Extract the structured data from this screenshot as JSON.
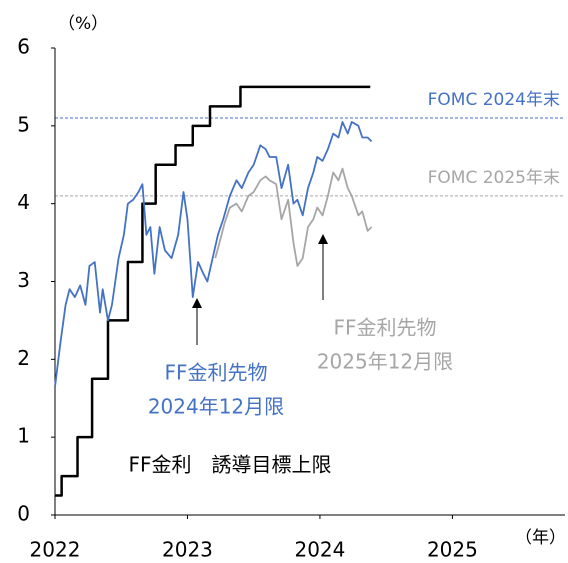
{
  "chart_data": {
    "type": "line",
    "unit_y": "（%）",
    "unit_x": "（年）",
    "xlim": [
      2022,
      2025.85
    ],
    "xticks": [
      2022,
      2023,
      2024,
      2025
    ],
    "ylim": [
      0,
      6
    ],
    "yticks": [
      0,
      1,
      2,
      3,
      4,
      5,
      6
    ],
    "grid": false,
    "hlines": [
      {
        "value": 5.1,
        "label": "FOMC 2024年末",
        "color": "#4472c4"
      },
      {
        "value": 4.1,
        "label": "FOMC  2025年末",
        "color": "#a6a6a6"
      }
    ],
    "series": [
      {
        "name": [
          "FF金利　誘導目標上限"
        ],
        "color": "#000000",
        "step": true,
        "x": [
          2022.0,
          2022.05,
          2022.17,
          2022.28,
          2022.4,
          2022.55,
          2022.66,
          2022.76,
          2022.91,
          2023.04,
          2023.17,
          2023.4,
          2024.38
        ],
        "values": [
          0.25,
          0.5,
          1.0,
          1.75,
          2.5,
          3.25,
          4.0,
          4.5,
          4.75,
          5.0,
          5.25,
          5.5,
          5.5
        ]
      },
      {
        "name": [
          "FF金利先物",
          "2024年12月限"
        ],
        "color": "#4472c4",
        "step": false,
        "x": [
          2022.0,
          2022.04,
          2022.08,
          2022.11,
          2022.15,
          2022.19,
          2022.23,
          2022.26,
          2022.3,
          2022.34,
          2022.36,
          2022.4,
          2022.43,
          2022.48,
          2022.52,
          2022.55,
          2022.59,
          2022.63,
          2022.66,
          2022.69,
          2022.72,
          2022.75,
          2022.79,
          2022.83,
          2022.88,
          2022.93,
          2022.97,
          2023.0,
          2023.02,
          2023.04,
          2023.08,
          2023.12,
          2023.15,
          2023.19,
          2023.23,
          2023.27,
          2023.32,
          2023.37,
          2023.41,
          2023.46,
          2023.5,
          2023.55,
          2023.59,
          2023.62,
          2023.67,
          2023.71,
          2023.76,
          2023.8,
          2023.83,
          2023.87,
          2023.91,
          2023.95,
          2023.98,
          2024.02,
          2024.06,
          2024.1,
          2024.14,
          2024.17,
          2024.21,
          2024.24,
          2024.29,
          2024.32,
          2024.36,
          2024.39
        ],
        "values": [
          1.65,
          2.2,
          2.7,
          2.9,
          2.8,
          2.95,
          2.7,
          3.2,
          3.25,
          2.6,
          2.9,
          2.5,
          2.7,
          3.3,
          3.6,
          4.0,
          4.05,
          4.15,
          4.25,
          3.6,
          3.7,
          3.1,
          3.7,
          3.4,
          3.3,
          3.6,
          4.15,
          3.8,
          3.3,
          2.8,
          3.25,
          3.1,
          3.0,
          3.3,
          3.6,
          3.8,
          4.1,
          4.3,
          4.2,
          4.4,
          4.5,
          4.75,
          4.7,
          4.6,
          4.6,
          4.2,
          4.5,
          4.0,
          4.05,
          3.85,
          4.2,
          4.4,
          4.6,
          4.55,
          4.7,
          4.9,
          4.85,
          5.05,
          4.9,
          5.05,
          5.0,
          4.85,
          4.85,
          4.8
        ]
      },
      {
        "name": [
          "FF金利先物",
          "2025年12月限"
        ],
        "color": "#a6a6a6",
        "step": false,
        "x": [
          2023.21,
          2023.25,
          2023.28,
          2023.32,
          2023.37,
          2023.41,
          2023.46,
          2023.5,
          2023.55,
          2023.59,
          2023.62,
          2023.67,
          2023.71,
          2023.76,
          2023.8,
          2023.83,
          2023.87,
          2023.91,
          2023.95,
          2023.98,
          2024.02,
          2024.06,
          2024.1,
          2024.14,
          2024.17,
          2024.21,
          2024.24,
          2024.29,
          2024.32,
          2024.36,
          2024.39
        ],
        "values": [
          3.3,
          3.55,
          3.75,
          3.95,
          4.0,
          3.9,
          4.1,
          4.15,
          4.3,
          4.35,
          4.3,
          4.25,
          3.8,
          4.05,
          3.5,
          3.2,
          3.3,
          3.7,
          3.8,
          3.95,
          3.85,
          4.1,
          4.4,
          4.3,
          4.45,
          4.2,
          4.1,
          3.85,
          3.9,
          3.65,
          3.7
        ]
      }
    ]
  }
}
